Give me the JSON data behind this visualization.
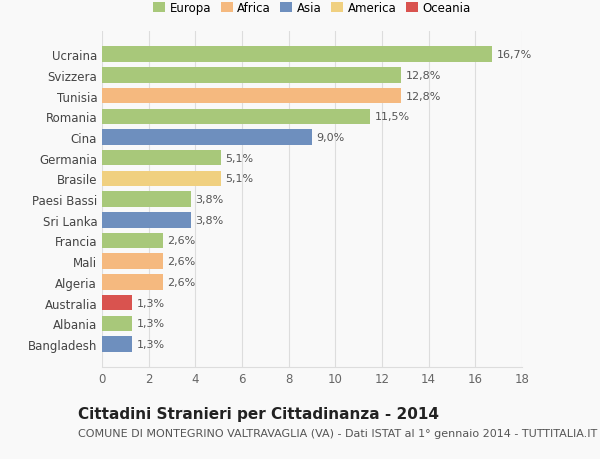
{
  "categories": [
    "Ucraina",
    "Svizzera",
    "Tunisia",
    "Romania",
    "Cina",
    "Germania",
    "Brasile",
    "Paesi Bassi",
    "Sri Lanka",
    "Francia",
    "Mali",
    "Algeria",
    "Australia",
    "Albania",
    "Bangladesh"
  ],
  "values": [
    16.7,
    12.8,
    12.8,
    11.5,
    9.0,
    5.1,
    5.1,
    3.8,
    3.8,
    2.6,
    2.6,
    2.6,
    1.3,
    1.3,
    1.3
  ],
  "labels": [
    "16,7%",
    "12,8%",
    "12,8%",
    "11,5%",
    "9,0%",
    "5,1%",
    "5,1%",
    "3,8%",
    "3,8%",
    "2,6%",
    "2,6%",
    "2,6%",
    "1,3%",
    "1,3%",
    "1,3%"
  ],
  "continents": [
    "Europa",
    "Europa",
    "Africa",
    "Europa",
    "Asia",
    "Europa",
    "America",
    "Europa",
    "Asia",
    "Europa",
    "Africa",
    "Africa",
    "Oceania",
    "Europa",
    "Asia"
  ],
  "continent_colors": {
    "Europa": "#a8c87a",
    "Africa": "#f5b97f",
    "Asia": "#6e8fbe",
    "America": "#f0d080",
    "Oceania": "#d9534f"
  },
  "legend_order": [
    "Europa",
    "Africa",
    "Asia",
    "America",
    "Oceania"
  ],
  "title": "Cittadini Stranieri per Cittadinanza - 2014",
  "subtitle": "COMUNE DI MONTEGRINO VALTRAVAGLIA (VA) - Dati ISTAT al 1° gennaio 2014 - TUTTITALIA.IT",
  "xlim": [
    0,
    18
  ],
  "xticks": [
    0,
    2,
    4,
    6,
    8,
    10,
    12,
    14,
    16,
    18
  ],
  "background_color": "#f9f9f9",
  "grid_color": "#dddddd",
  "bar_height": 0.75,
  "title_fontsize": 11,
  "subtitle_fontsize": 8,
  "label_fontsize": 8,
  "ytick_fontsize": 8.5,
  "xtick_fontsize": 8.5
}
